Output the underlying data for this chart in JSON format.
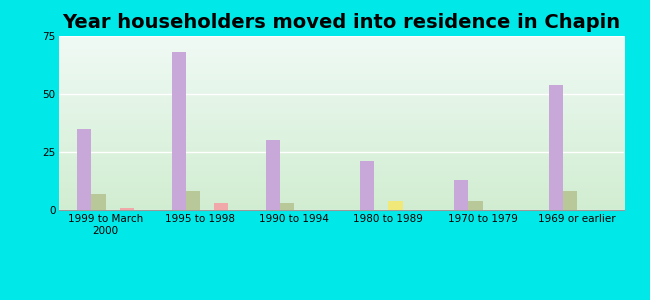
{
  "title": "Year householders moved into residence in Chapin",
  "categories": [
    "1999 to March\n2000",
    "1995 to 1998",
    "1990 to 1994",
    "1980 to 1989",
    "1970 to 1979",
    "1969 or earlier"
  ],
  "series": {
    "White Non-Hispanic": [
      35,
      68,
      30,
      21,
      13,
      54
    ],
    "Black": [
      7,
      8,
      3,
      0,
      4,
      8
    ],
    "Two or More Races": [
      0,
      0,
      0,
      4,
      0,
      0
    ],
    "Hispanic or Latino": [
      1,
      3,
      0,
      0,
      0,
      0
    ]
  },
  "colors": {
    "White Non-Hispanic": "#c8a8d8",
    "Black": "#b8c898",
    "Two or More Races": "#f0e878",
    "Hispanic or Latino": "#f0a8a8"
  },
  "ylim": [
    0,
    75
  ],
  "yticks": [
    0,
    25,
    50,
    75
  ],
  "bar_width": 0.15,
  "background_color": "#00e8e8",
  "grid_color": "#ffffff",
  "title_fontsize": 14,
  "legend_fontsize": 8.5,
  "tick_fontsize": 7.5
}
